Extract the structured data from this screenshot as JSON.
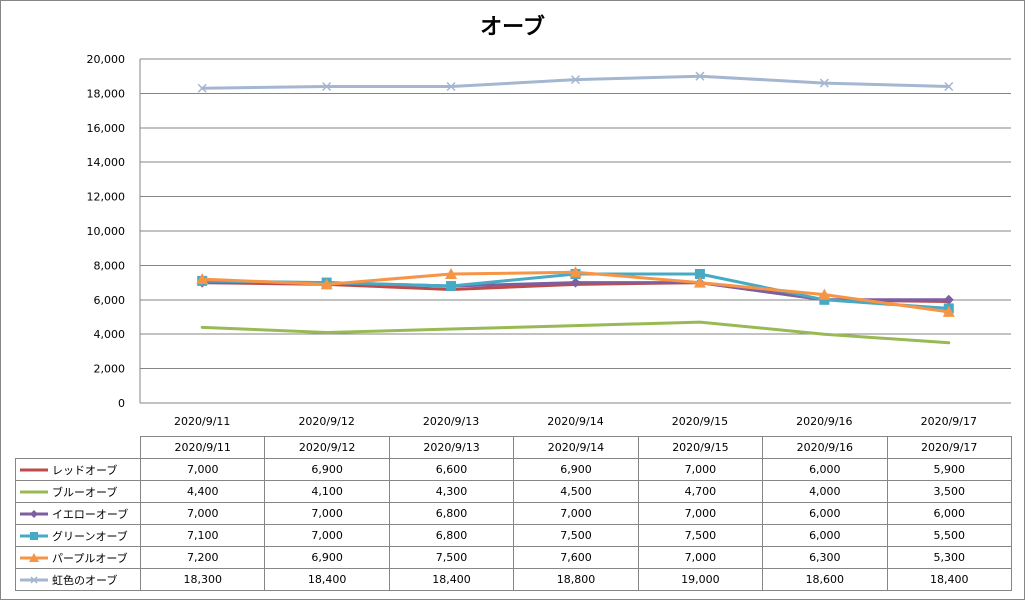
{
  "chart_data": {
    "type": "line",
    "title": "オーブ",
    "xlabel": "",
    "ylabel": "",
    "categories": [
      "2020/9/11",
      "2020/9/12",
      "2020/9/13",
      "2020/9/14",
      "2020/9/15",
      "2020/9/16",
      "2020/9/17"
    ],
    "ylim": [
      0,
      20000
    ],
    "yticks": [
      "20,000",
      "18,000",
      "16,000",
      "14,000",
      "12,000",
      "10,000",
      "8,000",
      "6,000",
      "4,000",
      "2,000",
      "0"
    ],
    "grid": true,
    "legend": "data-table",
    "series": [
      {
        "name": "レッドオーブ",
        "color": "#be4b48",
        "marker": "none",
        "values": [
          7000,
          6900,
          6600,
          6900,
          7000,
          6000,
          5900
        ],
        "labels": [
          "7,000",
          "6,900",
          "6,600",
          "6,900",
          "7,000",
          "6,000",
          "5,900"
        ]
      },
      {
        "name": "ブルーオーブ",
        "color": "#98b954",
        "marker": "none",
        "values": [
          4400,
          4100,
          4300,
          4500,
          4700,
          4000,
          3500
        ],
        "labels": [
          "4,400",
          "4,100",
          "4,300",
          "4,500",
          "4,700",
          "4,000",
          "3,500"
        ]
      },
      {
        "name": "イエローオーブ",
        "color": "#7d5fa0",
        "marker": "diamond",
        "values": [
          7000,
          7000,
          6800,
          7000,
          7000,
          6000,
          6000
        ],
        "labels": [
          "7,000",
          "7,000",
          "6,800",
          "7,000",
          "7,000",
          "6,000",
          "6,000"
        ]
      },
      {
        "name": "グリーンオーブ",
        "color": "#46aac5",
        "marker": "square",
        "values": [
          7100,
          7000,
          6800,
          7500,
          7500,
          6000,
          5500
        ],
        "labels": [
          "7,100",
          "7,000",
          "6,800",
          "7,500",
          "7,500",
          "6,000",
          "5,500"
        ]
      },
      {
        "name": "パープルオーブ",
        "color": "#f69546",
        "marker": "triangle",
        "values": [
          7200,
          6900,
          7500,
          7600,
          7000,
          6300,
          5300
        ],
        "labels": [
          "7,200",
          "6,900",
          "7,500",
          "7,600",
          "7,000",
          "6,300",
          "5,300"
        ]
      },
      {
        "name": "虹色のオーブ",
        "color": "#a5b6d1",
        "marker": "x",
        "values": [
          18300,
          18400,
          18400,
          18800,
          19000,
          18600,
          18400
        ],
        "labels": [
          "18,300",
          "18,400",
          "18,400",
          "18,800",
          "19,000",
          "18,600",
          "18,400"
        ]
      }
    ]
  }
}
